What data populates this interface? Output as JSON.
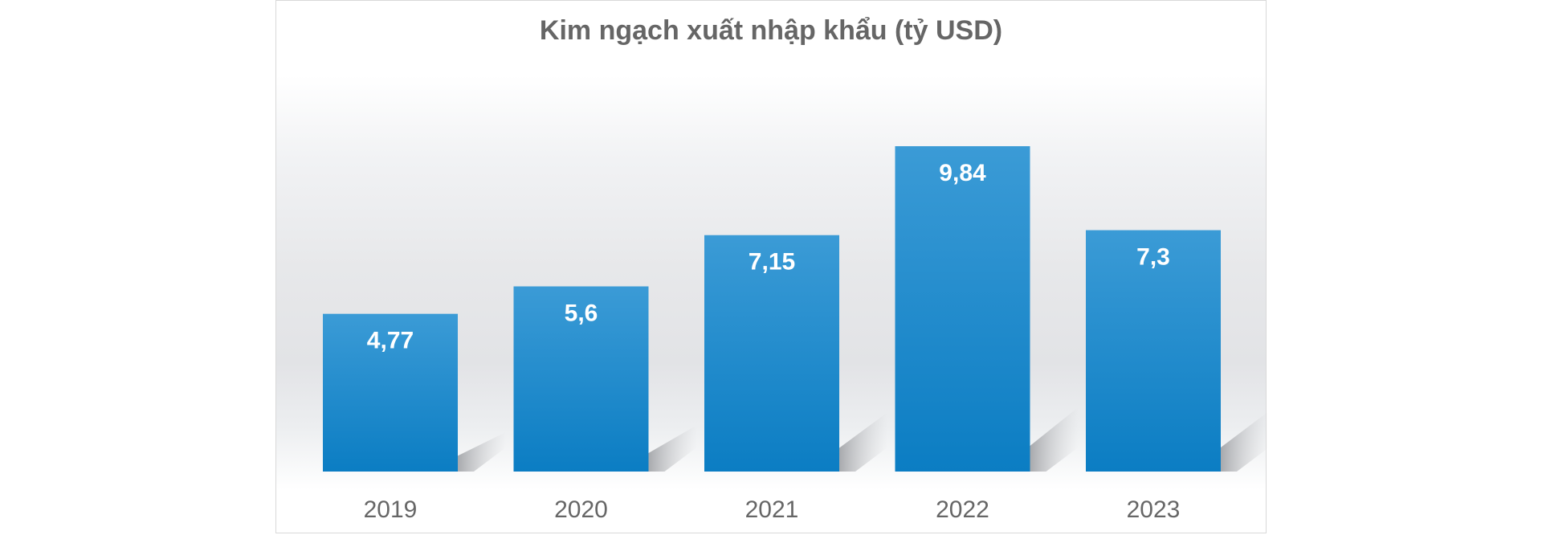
{
  "colors": {
    "bar_top": "#3b9bd6",
    "bar_bottom": "#0b7dc3",
    "title": "#666666",
    "tick": "#666666",
    "bar_label": "#ffffff"
  },
  "chart_data": {
    "type": "bar",
    "title": "Kim ngạch xuất nhập khẩu (tỷ USD)",
    "categories": [
      "2019",
      "2020",
      "2021",
      "2022",
      "2023"
    ],
    "values": [
      4.77,
      5.6,
      7.15,
      9.84,
      7.3
    ],
    "data_labels": [
      "4,77",
      "5,6",
      "7,15",
      "9,84",
      "7,3"
    ],
    "xlabel": "",
    "ylabel": "",
    "ylim": [
      0,
      10.5
    ],
    "grid": false,
    "legend": "none"
  }
}
